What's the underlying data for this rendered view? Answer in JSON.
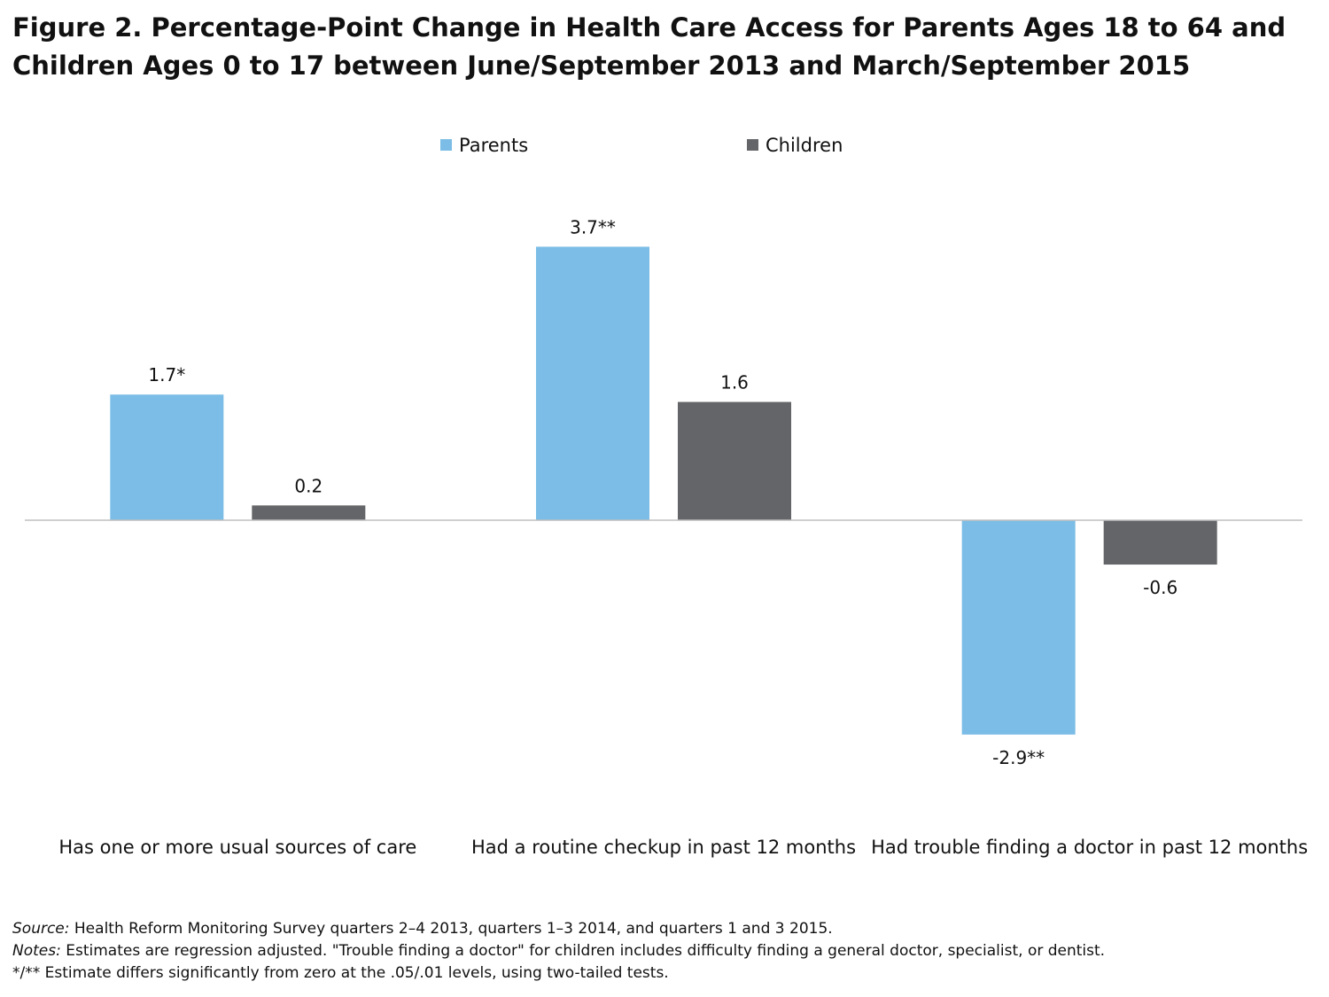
{
  "chart_data": {
    "type": "bar",
    "title": "Figure 2. Percentage-Point Change in Health Care Access for Parents Ages 18 to 64 and Children Ages 0 to 17 between June/September 2013 and March/September 2015",
    "categories": [
      "Has one or more usual sources of care",
      "Had a routine checkup in past 12 months",
      "Had trouble finding a doctor in past 12 months"
    ],
    "series": [
      {
        "name": "Parents",
        "color": "#7bbde6",
        "values": [
          1.7,
          3.7,
          -2.9
        ],
        "labels": [
          "1.7*",
          "3.7**",
          "-2.9**"
        ]
      },
      {
        "name": "Children",
        "color": "#646568",
        "values": [
          0.2,
          1.6,
          -0.6
        ],
        "labels": [
          "0.2",
          "1.6",
          "-0.6"
        ]
      }
    ],
    "ylim": [
      -3.9,
      4.4
    ],
    "legend_position": "top-center",
    "grid": false,
    "xlabel": "",
    "ylabel": ""
  },
  "notes": {
    "source_lead": "Source:",
    "source_text": " Health Reform Monitoring Survey quarters 2–4 2013, quarters 1–3 2014, and quarters 1 and 3 2015.",
    "notes_lead": "Notes:",
    "notes_text": " Estimates are regression adjusted.  \"Trouble finding a doctor\" for children includes difficulty finding a general doctor, specialist, or dentist.",
    "significance": "*/** Estimate differs significantly from zero at the .05/.01 levels, using two-tailed tests."
  }
}
